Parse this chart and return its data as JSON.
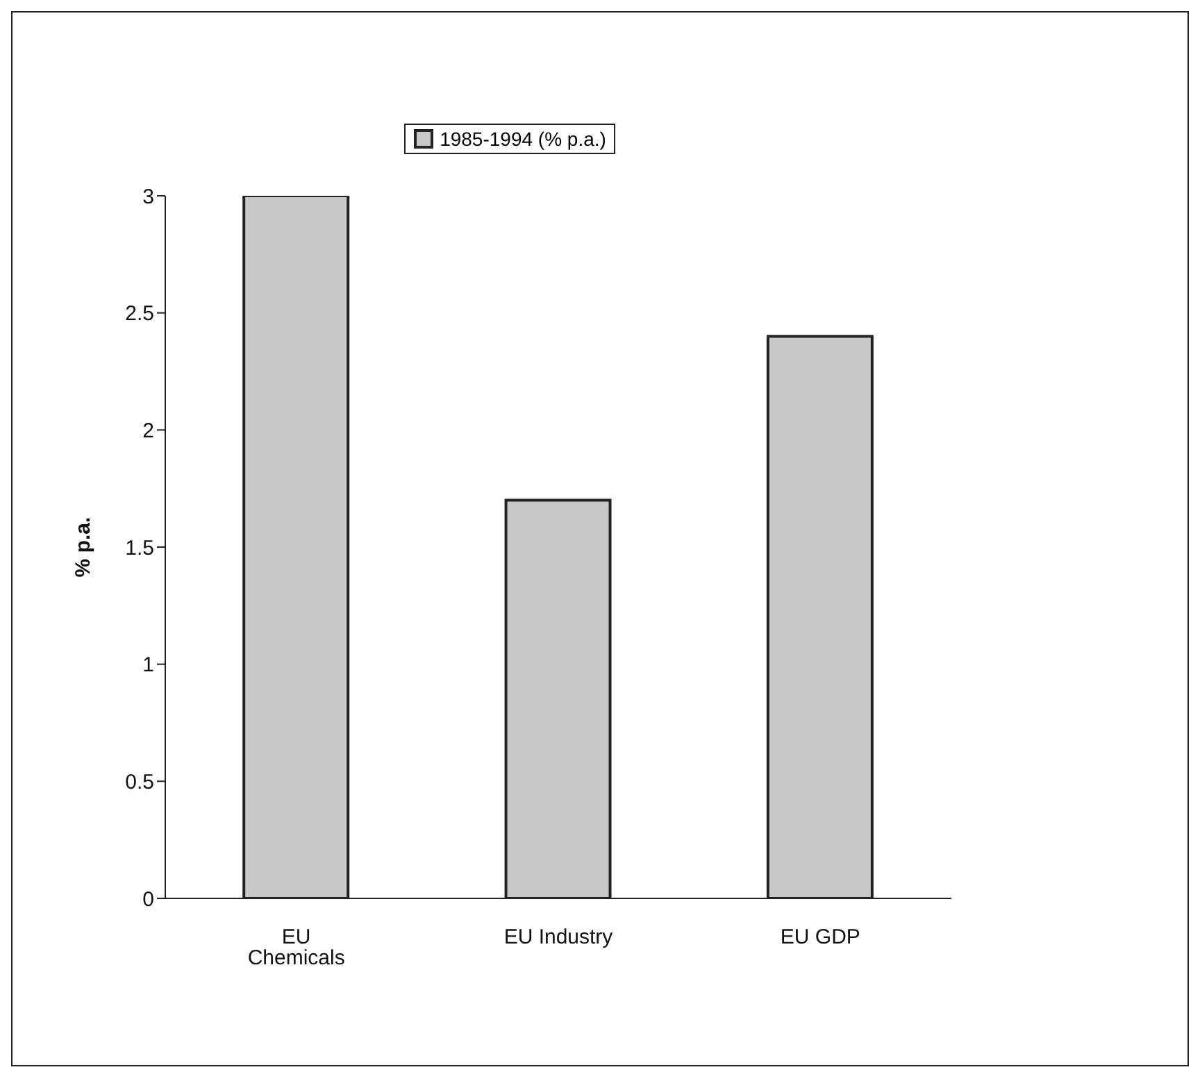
{
  "chart_data": {
    "type": "bar",
    "ylabel": "% p.a.",
    "categories": [
      "EU Chemicals",
      "EU Industry",
      "EU GDP"
    ],
    "series": [
      {
        "name": "1985-1994 (% p.a.)",
        "color": "#c8c8c8",
        "values": [
          3,
          1.7,
          2.4
        ]
      }
    ],
    "ylim": [
      0,
      3
    ],
    "yticks": [
      0,
      0.5,
      1,
      1.5,
      2,
      2.5,
      3
    ],
    "grid": false,
    "legend": "top"
  }
}
